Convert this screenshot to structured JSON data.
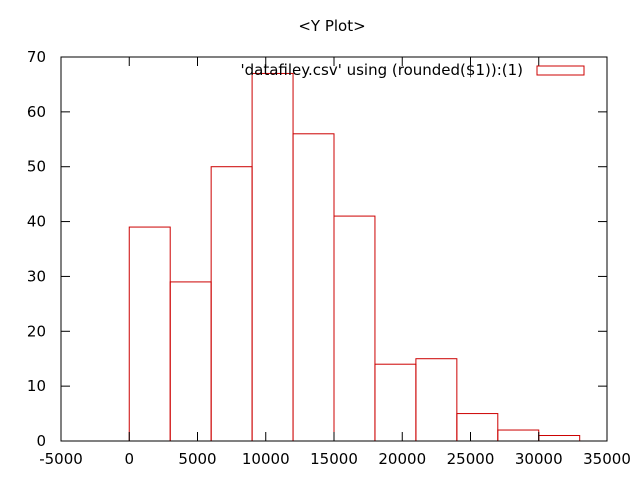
{
  "chart_data": {
    "type": "bar",
    "title": "<Y Plot>",
    "xlabel": "",
    "ylabel": "",
    "xlim": [
      -5000,
      35000
    ],
    "ylim": [
      0,
      70
    ],
    "x_ticks": [
      -5000,
      0,
      5000,
      10000,
      15000,
      20000,
      25000,
      30000,
      35000
    ],
    "y_ticks": [
      0,
      10,
      20,
      30,
      40,
      50,
      60,
      70
    ],
    "bin_width": 3000,
    "series": [
      {
        "name": "'datafiley.csv' using (rounded($1)):(1)",
        "color": "#cc0000",
        "x": [
          1500,
          4500,
          7500,
          10500,
          13500,
          16500,
          19500,
          22500,
          25500,
          28500,
          31500
        ],
        "values": [
          39,
          29,
          50,
          67,
          56,
          41,
          14,
          15,
          5,
          2,
          1
        ]
      }
    ],
    "grid": false,
    "legend_position": "top-right"
  }
}
